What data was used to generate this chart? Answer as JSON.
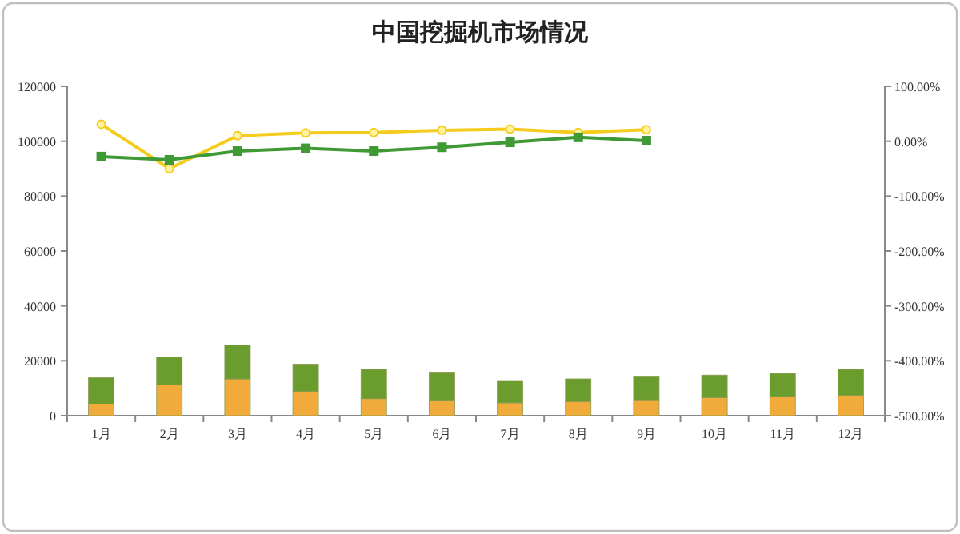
{
  "chart_data": {
    "type": "bar",
    "title": "中国挖掘机市场情况",
    "stacked": true,
    "categories": [
      "1月",
      "2月",
      "3月",
      "4月",
      "5月",
      "6月",
      "7月",
      "8月",
      "9月",
      "10月",
      "11月",
      "12月"
    ],
    "series": [
      {
        "color": "#f0ab3a",
        "values": [
          4300,
          11300,
          13400,
          8900,
          6200,
          5600,
          4700,
          5200,
          5800,
          6600,
          7000,
          7400
        ]
      },
      {
        "color": "#6a9c2e",
        "values": [
          9500,
          10100,
          12400,
          9900,
          10700,
          10300,
          8100,
          8200,
          8600,
          8200,
          8400,
          9500
        ]
      },
      {
        "type": "line",
        "axis": "y2",
        "color": "#f5cc1c",
        "marker": "circle",
        "values": [
          31,
          -50,
          10,
          15,
          16,
          20,
          22,
          16,
          21,
          null,
          null,
          null
        ]
      },
      {
        "type": "line",
        "axis": "y2",
        "color": "#3f9a35",
        "marker": "square",
        "values": [
          -28,
          -34,
          -18,
          -13,
          -18,
          -11,
          -2,
          7,
          1,
          null,
          null,
          null
        ]
      }
    ],
    "ylim": [
      0,
      120000
    ],
    "yticks": [
      0,
      20000,
      40000,
      60000,
      80000,
      100000,
      120000
    ],
    "y2lim": [
      -500,
      100
    ],
    "y2ticks": [
      {
        "value": -500,
        "label": "-500.00%"
      },
      {
        "value": -400,
        "label": "-400.00%"
      },
      {
        "value": -300,
        "label": "-300.00%"
      },
      {
        "value": -200,
        "label": "-200.00%"
      },
      {
        "value": -100,
        "label": "-100.00%"
      },
      {
        "value": 0,
        "label": "0.00%"
      },
      {
        "value": 100,
        "label": "100.00%"
      }
    ],
    "grid": false
  }
}
